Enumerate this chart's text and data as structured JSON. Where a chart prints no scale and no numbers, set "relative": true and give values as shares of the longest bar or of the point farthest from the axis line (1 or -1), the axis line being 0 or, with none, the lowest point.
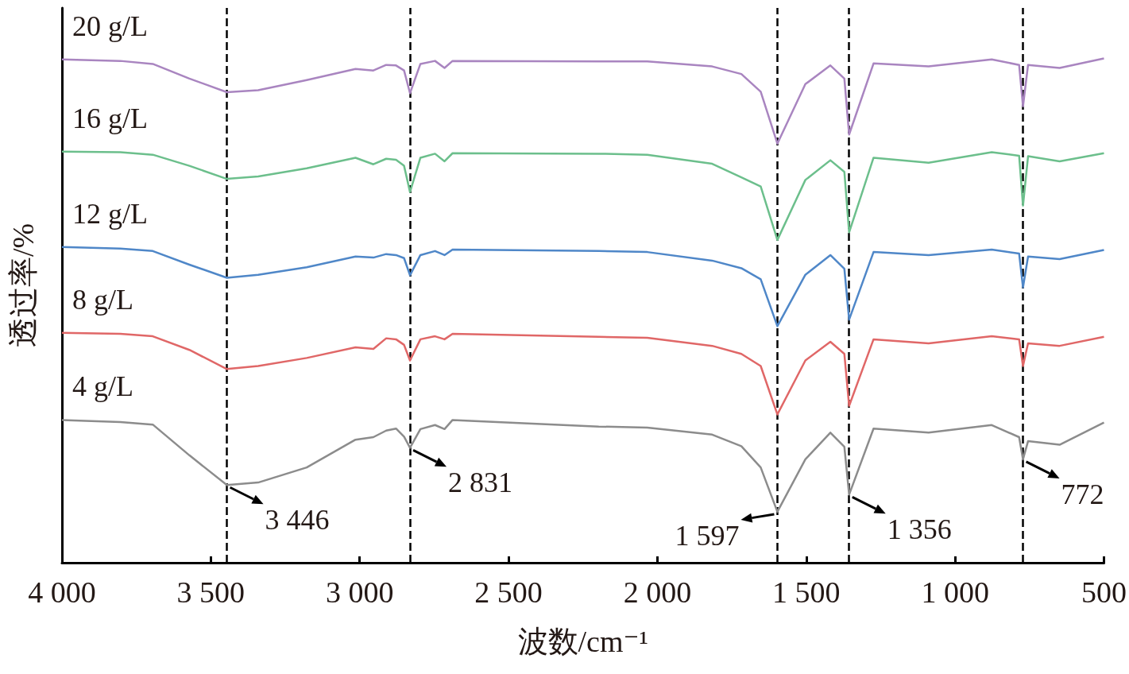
{
  "chart_data": {
    "type": "line",
    "relative": true,
    "xlabel": "波数/cm⁻¹",
    "ylabel": "透过率/%",
    "xlim": [
      4000,
      500
    ],
    "xticks": [
      {
        "value": 4000,
        "label": "4 000"
      },
      {
        "value": 3500,
        "label": "3 500"
      },
      {
        "value": 3000,
        "label": "3 000"
      },
      {
        "value": 2500,
        "label": "2 500"
      },
      {
        "value": 2000,
        "label": "2 000"
      },
      {
        "value": 1500,
        "label": "1 500"
      },
      {
        "value": 1000,
        "label": "1 000"
      },
      500
    ],
    "marker": "none",
    "x": [
      4000,
      3804,
      3695,
      3572,
      3446,
      3341,
      3178,
      3014,
      2954,
      2911,
      2878,
      2851,
      2831,
      2796,
      2747,
      2715,
      2688,
      2197,
      2034,
      1816,
      1718,
      1653,
      1597,
      1503,
      1419,
      1372,
      1356,
      1274,
      1089,
      877,
      785,
      772,
      755,
      649,
      500
    ],
    "series": [
      {
        "name": "20 g/L",
        "color": "#a985c0",
        "values": [
          0.998,
          0.995,
          0.989,
          0.96,
          0.933,
          0.937,
          0.957,
          0.979,
          0.976,
          0.987,
          0.986,
          0.976,
          0.931,
          0.989,
          0.995,
          0.981,
          0.995,
          0.994,
          0.994,
          0.984,
          0.969,
          0.934,
          0.831,
          0.949,
          0.986,
          0.96,
          0.849,
          0.99,
          0.984,
          0.998,
          0.987,
          0.905,
          0.987,
          0.981,
          1.0
        ]
      },
      {
        "name": "16 g/L",
        "color": "#6cbf8c",
        "values": [
          0.815,
          0.814,
          0.809,
          0.787,
          0.761,
          0.766,
          0.782,
          0.803,
          0.79,
          0.801,
          0.799,
          0.787,
          0.735,
          0.803,
          0.811,
          0.796,
          0.812,
          0.811,
          0.809,
          0.791,
          0.764,
          0.746,
          0.64,
          0.759,
          0.798,
          0.775,
          0.655,
          0.803,
          0.793,
          0.814,
          0.807,
          0.708,
          0.806,
          0.796,
          0.812
        ]
      },
      {
        "name": "12 g/L",
        "color": "#4f87c8",
        "values": [
          0.626,
          0.623,
          0.618,
          0.591,
          0.565,
          0.571,
          0.586,
          0.607,
          0.605,
          0.612,
          0.61,
          0.604,
          0.57,
          0.61,
          0.618,
          0.61,
          0.621,
          0.618,
          0.616,
          0.599,
          0.584,
          0.562,
          0.469,
          0.571,
          0.61,
          0.583,
          0.482,
          0.616,
          0.61,
          0.621,
          0.613,
          0.546,
          0.607,
          0.602,
          0.62
        ]
      },
      {
        "name": "8 g/L",
        "color": "#e06767",
        "values": [
          0.456,
          0.454,
          0.449,
          0.422,
          0.384,
          0.39,
          0.406,
          0.427,
          0.424,
          0.445,
          0.443,
          0.432,
          0.401,
          0.443,
          0.449,
          0.443,
          0.454,
          0.448,
          0.446,
          0.43,
          0.414,
          0.39,
          0.294,
          0.401,
          0.438,
          0.414,
          0.311,
          0.443,
          0.435,
          0.449,
          0.443,
          0.39,
          0.435,
          0.43,
          0.448
        ]
      },
      {
        "name": "4 g/L",
        "color": "#8c8c8c",
        "values": [
          0.283,
          0.279,
          0.274,
          0.213,
          0.154,
          0.159,
          0.189,
          0.244,
          0.249,
          0.262,
          0.266,
          0.25,
          0.228,
          0.265,
          0.273,
          0.265,
          0.283,
          0.27,
          0.268,
          0.254,
          0.231,
          0.189,
          0.101,
          0.205,
          0.258,
          0.23,
          0.135,
          0.266,
          0.258,
          0.273,
          0.249,
          0.205,
          0.241,
          0.234,
          0.278
        ]
      }
    ],
    "ref_lines": [
      {
        "axis": "x",
        "value": 3446,
        "color": "#000000",
        "line_style": "dashed"
      },
      {
        "axis": "x",
        "value": 2831,
        "color": "#000000",
        "line_style": "dashed"
      },
      {
        "axis": "x",
        "value": 1597,
        "color": "#000000",
        "line_style": "dashed"
      },
      {
        "axis": "x",
        "value": 1356,
        "color": "#000000",
        "line_style": "dashed"
      },
      {
        "axis": "x",
        "value": 772,
        "color": "#000000",
        "line_style": "dashed"
      }
    ],
    "annotations": [
      {
        "text": "3 446",
        "x": 3446,
        "y": 0.154
      },
      {
        "text": "2 831",
        "x": 2831,
        "y": 0.228
      },
      {
        "text": "1 597",
        "x": 1597,
        "y": 0.101
      },
      {
        "text": "1 356",
        "x": 1356,
        "y": 0.135
      },
      {
        "text": "772",
        "x": 772,
        "y": 0.205
      }
    ]
  }
}
